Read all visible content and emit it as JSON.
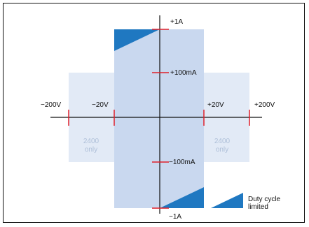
{
  "diagram": {
    "v_labels": {
      "neg200": "−200V",
      "neg20": "−20V",
      "pos20": "+20V",
      "pos200": "+200V"
    },
    "i_labels": {
      "pos1A": "+1A",
      "pos100mA": "+100mA",
      "neg100mA": "−100mA",
      "neg1A": "−1A"
    },
    "extended_range_note": {
      "left": [
        "2400",
        "only"
      ],
      "right": [
        "2400",
        "only"
      ]
    },
    "legend": {
      "line1": "Duty cycle",
      "line2": "limited"
    },
    "colors": {
      "extended_region": "#e2eaf6",
      "main_region": "#c9d8ef",
      "duty_cycle": "#1f78c1",
      "tick": "#e0202a",
      "axis": "#111111",
      "ghost_text": "#aebfd8"
    }
  }
}
